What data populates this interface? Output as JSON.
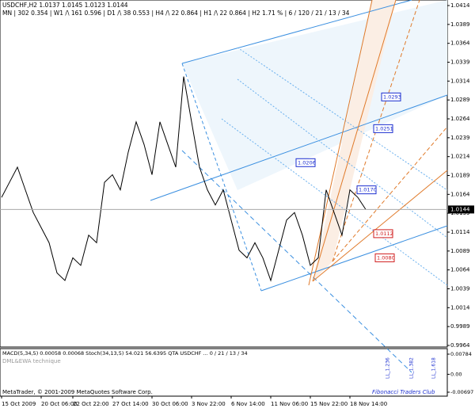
{
  "chart_data": {
    "type": "line",
    "title": "USDCHF,H2  1.0137 1.0145 1.0123 1.0144",
    "subtitle": "MN | 302  0.354 | W1 /\\ 161  0.596 | D1 /\\ 38  0.553 | H4 /\\ 22  0.864 | H1 /\\ 22  0.864 | H2  1.71 % | 6 / 120 / 21 / 13 / 34",
    "categories": [
      "15 Oct 2009",
      null,
      null,
      null,
      null,
      "20 Oct 06:00",
      null,
      null,
      null,
      "22 Oct 22:00",
      null,
      null,
      null,
      null,
      "27 Oct 14:00",
      null,
      null,
      null,
      null,
      "30 Oct 06:00",
      null,
      null,
      null,
      null,
      "3 Nov 22:00",
      null,
      null,
      null,
      null,
      "6 Nov 14:00",
      null,
      null,
      null,
      null,
      "11 Nov 06:00",
      null,
      null,
      null,
      null,
      "15 Nov 22:00",
      null,
      null,
      null,
      null,
      "18 Nov 14:00",
      null,
      null
    ],
    "values": [
      1.016,
      1.018,
      1.02,
      1.017,
      1.014,
      1.012,
      1.01,
      1.006,
      1.005,
      1.008,
      1.007,
      1.011,
      1.01,
      1.018,
      1.019,
      1.017,
      1.022,
      1.026,
      1.023,
      1.019,
      1.026,
      1.023,
      1.02,
      1.032,
      1.026,
      1.02,
      1.017,
      1.015,
      1.017,
      1.013,
      1.009,
      1.008,
      1.01,
      1.008,
      1.005,
      1.009,
      1.013,
      1.014,
      1.011,
      1.007,
      1.008,
      1.017,
      1.014,
      1.011,
      1.017,
      1.016,
      1.0144
    ],
    "color": "#000000",
    "ylim": [
      0.9964,
      1.0414
    ],
    "yticks": [
      1.0414,
      1.0389,
      1.0364,
      1.0339,
      1.0314,
      1.0289,
      1.0264,
      1.0239,
      1.0214,
      1.0189,
      1.0164,
      1.0139,
      1.0114,
      1.0089,
      1.0064,
      1.0039,
      1.0014,
      0.9989,
      0.9964
    ],
    "last": 1.0144,
    "annotations": [
      {
        "value": 1.0293,
        "label": "1.0293"
      },
      {
        "value": 1.0251,
        "label": "1.0251"
      },
      {
        "value": 1.0206,
        "label": "1.0206"
      },
      {
        "value": 1.017,
        "label": "1.0170"
      },
      {
        "value": 1.0112,
        "label": "1.0112"
      },
      {
        "value": 1.008,
        "label": "1.0080"
      }
    ],
    "fib_labels": [
      "LL_1.236",
      "LL_1.382",
      "LL_1.618"
    ],
    "indicator": {
      "title": "MACD(5,34,5) 0.00058 0.00068  Stoch(34,13,5) 54.021 56.6395  QTA USDCHF ... 0 / 21 / 13 / 34",
      "subtitle": "DML&EWA technique",
      "ylim": [
        -0.00697,
        0.00784
      ],
      "yticks": [
        0.00784,
        {
          "value": 0,
          "label": "0.00"
        },
        -0.00697
      ]
    },
    "footer": "MetaTrader, © 2001-2009 MetaQuotes Software Corp.",
    "brand": "Fibonacci Traders Club"
  }
}
